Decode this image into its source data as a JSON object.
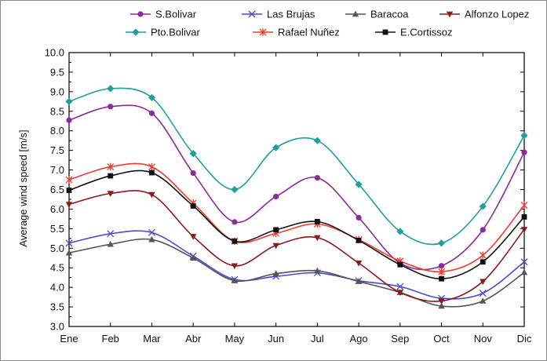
{
  "chart_data": {
    "type": "line",
    "title": "",
    "xlabel": "",
    "ylabel": "Average wind speed [m/s]",
    "categories": [
      "Ene",
      "Feb",
      "Mar",
      "Abr",
      "May",
      "Jun",
      "Jul",
      "Ago",
      "Sep",
      "Oct",
      "Nov",
      "Dic"
    ],
    "ylim": [
      3.0,
      10.0
    ],
    "yticks": [
      "3.0",
      "3.5",
      "4.0",
      "4.5",
      "5.0",
      "5.5",
      "6.0",
      "6.5",
      "7.0",
      "7.5",
      "8.0",
      "8.5",
      "9.0",
      "9.5",
      "10.0"
    ],
    "grid": false,
    "legend_position": "top",
    "series": [
      {
        "name": "S.Bolivar",
        "color": "#8b2a9a",
        "marker": "circle",
        "values": [
          8.27,
          8.62,
          8.45,
          6.92,
          5.67,
          6.32,
          6.8,
          5.78,
          4.62,
          4.55,
          5.47,
          7.45
        ]
      },
      {
        "name": "Las Brujas",
        "color": "#4a4ad0",
        "marker": "x",
        "values": [
          5.13,
          5.37,
          5.4,
          4.8,
          4.2,
          4.28,
          4.37,
          4.17,
          4.02,
          3.72,
          3.85,
          4.65
        ]
      },
      {
        "name": "Baracoa",
        "color": "#555555",
        "marker": "triangle-up",
        "values": [
          4.88,
          5.1,
          5.22,
          4.75,
          4.17,
          4.35,
          4.42,
          4.15,
          3.87,
          3.52,
          3.65,
          4.38
        ]
      },
      {
        "name": "Alfonzo Lopez",
        "color": "#8b1a1a",
        "marker": "triangle-down",
        "values": [
          6.12,
          6.4,
          6.37,
          5.3,
          4.55,
          5.07,
          5.27,
          4.62,
          3.87,
          3.65,
          4.15,
          5.48
        ]
      },
      {
        "name": "Pto.Bolivar",
        "color": "#1f9e9a",
        "marker": "diamond",
        "values": [
          8.75,
          9.08,
          8.85,
          7.42,
          6.5,
          7.57,
          7.75,
          6.63,
          5.43,
          5.13,
          6.07,
          7.88
        ]
      },
      {
        "name": "Rafael Nuñez",
        "color": "#f03c2a",
        "marker": "asterisk",
        "values": [
          6.75,
          7.08,
          7.08,
          6.15,
          5.18,
          5.38,
          5.62,
          5.22,
          4.67,
          4.4,
          4.82,
          6.1
        ]
      },
      {
        "name": "E.Cortissoz",
        "color": "#111111",
        "marker": "square",
        "values": [
          6.48,
          6.85,
          6.93,
          6.08,
          5.18,
          5.47,
          5.68,
          5.2,
          4.58,
          4.22,
          4.65,
          5.8
        ]
      }
    ]
  }
}
